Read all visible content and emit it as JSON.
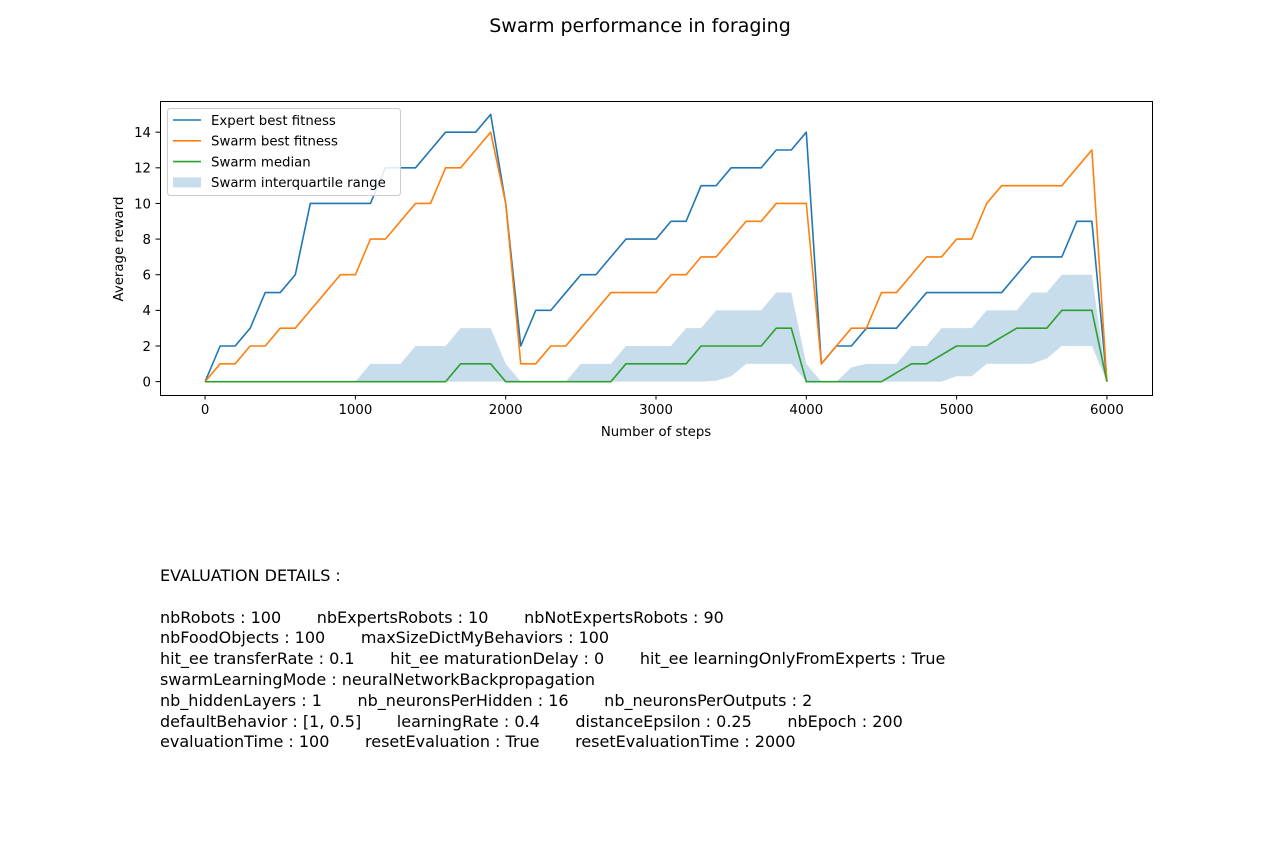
{
  "chart_data": {
    "type": "line",
    "title": "Swarm performance in foraging",
    "xlabel": "Number of steps",
    "ylabel": "Average reward",
    "xlim": [
      -300,
      6300
    ],
    "ylim": [
      -0.75,
      15.75
    ],
    "xticks": [
      0,
      1000,
      2000,
      3000,
      4000,
      5000,
      6000
    ],
    "yticks": [
      0,
      2,
      4,
      6,
      8,
      10,
      12,
      14
    ],
    "legend_position": "upper-left",
    "grid": false,
    "x": [
      0,
      100,
      200,
      300,
      400,
      500,
      600,
      700,
      800,
      900,
      1000,
      1100,
      1200,
      1300,
      1400,
      1500,
      1600,
      1700,
      1800,
      1900,
      2000,
      2100,
      2200,
      2300,
      2400,
      2500,
      2600,
      2700,
      2800,
      2900,
      3000,
      3100,
      3200,
      3300,
      3400,
      3500,
      3600,
      3700,
      3800,
      3900,
      4000,
      4100,
      4200,
      4300,
      4400,
      4500,
      4600,
      4700,
      4800,
      4900,
      5000,
      5100,
      5200,
      5300,
      5400,
      5500,
      5600,
      5700,
      5800,
      5900,
      6000
    ],
    "series": [
      {
        "name": "Expert best fitness",
        "color": "#1f77b4",
        "values": [
          0,
          2,
          2,
          3,
          5,
          5,
          6,
          10,
          10,
          10,
          10,
          10,
          12,
          12,
          12,
          13,
          14,
          14,
          14,
          15,
          10,
          2,
          4,
          4,
          5,
          6,
          6,
          7,
          8,
          8,
          8,
          9,
          9,
          11,
          11,
          12,
          12,
          12,
          13,
          13,
          14,
          1,
          2,
          2,
          3,
          3,
          3,
          4,
          5,
          5,
          5,
          5,
          5,
          5,
          6,
          7,
          7,
          7,
          9,
          9,
          0
        ]
      },
      {
        "name": "Swarm best fitness",
        "color": "#ff7f0e",
        "values": [
          0,
          1,
          1,
          2,
          2,
          3,
          3,
          4,
          5,
          6,
          6,
          8,
          8,
          9,
          10,
          10,
          12,
          12,
          13,
          14,
          10,
          1,
          1,
          2,
          2,
          3,
          4,
          5,
          5,
          5,
          5,
          6,
          6,
          7,
          7,
          8,
          9,
          9,
          10,
          10,
          10,
          1,
          2,
          3,
          3,
          5,
          5,
          6,
          7,
          7,
          8,
          8,
          10,
          11,
          11,
          11,
          11,
          11,
          12,
          13,
          0
        ]
      },
      {
        "name": "Swarm median",
        "color": "#2ca02c",
        "values": [
          0,
          0,
          0,
          0,
          0,
          0,
          0,
          0,
          0,
          0,
          0,
          0,
          0,
          0,
          0,
          0,
          0,
          1,
          1,
          1,
          0,
          0,
          0,
          0,
          0,
          0,
          0,
          0,
          1,
          1,
          1,
          1,
          1,
          2,
          2,
          2,
          2,
          2,
          3,
          3,
          0,
          0,
          0,
          0,
          0,
          0,
          0.5,
          1,
          1,
          1.5,
          2,
          2,
          2,
          2.5,
          3,
          3,
          3,
          4,
          4,
          4,
          0
        ]
      }
    ],
    "band": {
      "name": "Swarm interquartile range",
      "color": "#1f77b4",
      "opacity": 0.25,
      "low": [
        0,
        0,
        0,
        0,
        0,
        0,
        0,
        0,
        0,
        0,
        0,
        0,
        0,
        0,
        0,
        0,
        0,
        0,
        0,
        0,
        0,
        0,
        0,
        0,
        0,
        0,
        0,
        0,
        0,
        0,
        0,
        0,
        0,
        0,
        0.05,
        0.3,
        1,
        1,
        1,
        1,
        0,
        0,
        0,
        0,
        0,
        0,
        0,
        0,
        0,
        0,
        0.3,
        0.3,
        1,
        1,
        1,
        1,
        1.3,
        2,
        2,
        2,
        0
      ],
      "high": [
        0,
        0,
        0,
        0,
        0,
        0,
        0,
        0,
        0,
        0,
        0,
        1,
        1,
        1,
        2,
        2,
        2,
        3,
        3,
        3,
        1,
        0,
        0,
        0,
        0,
        1,
        1,
        1,
        2,
        2,
        2,
        2,
        3,
        3,
        4,
        4,
        4,
        4,
        5,
        5,
        1,
        0,
        0,
        0.8,
        1,
        1,
        1,
        2,
        2,
        3,
        3,
        3,
        4,
        4,
        4,
        5,
        5,
        6,
        6,
        6,
        0
      ]
    }
  },
  "details": {
    "heading": "EVALUATION DETAILS :",
    "rows": [
      [
        "nbRobots : 100",
        "nbExpertsRobots : 10",
        "nbNotExpertsRobots : 90"
      ],
      [
        "nbFoodObjects : 100",
        "maxSizeDictMyBehaviors : 100"
      ],
      [
        "hit_ee transferRate : 0.1",
        "hit_ee maturationDelay : 0",
        "hit_ee learningOnlyFromExperts : True"
      ],
      [
        "swarmLearningMode : neuralNetworkBackpropagation"
      ],
      [
        "nb_hiddenLayers : 1",
        "nb_neuronsPerHidden : 16",
        "nb_neuronsPerOutputs : 2"
      ],
      [
        "defaultBehavior : [1, 0.5]",
        "learningRate : 0.4",
        "distanceEpsilon : 0.25",
        "nbEpoch : 200"
      ],
      [
        "evaluationTime : 100",
        "resetEvaluation : True",
        "resetEvaluationTime : 2000"
      ]
    ]
  }
}
